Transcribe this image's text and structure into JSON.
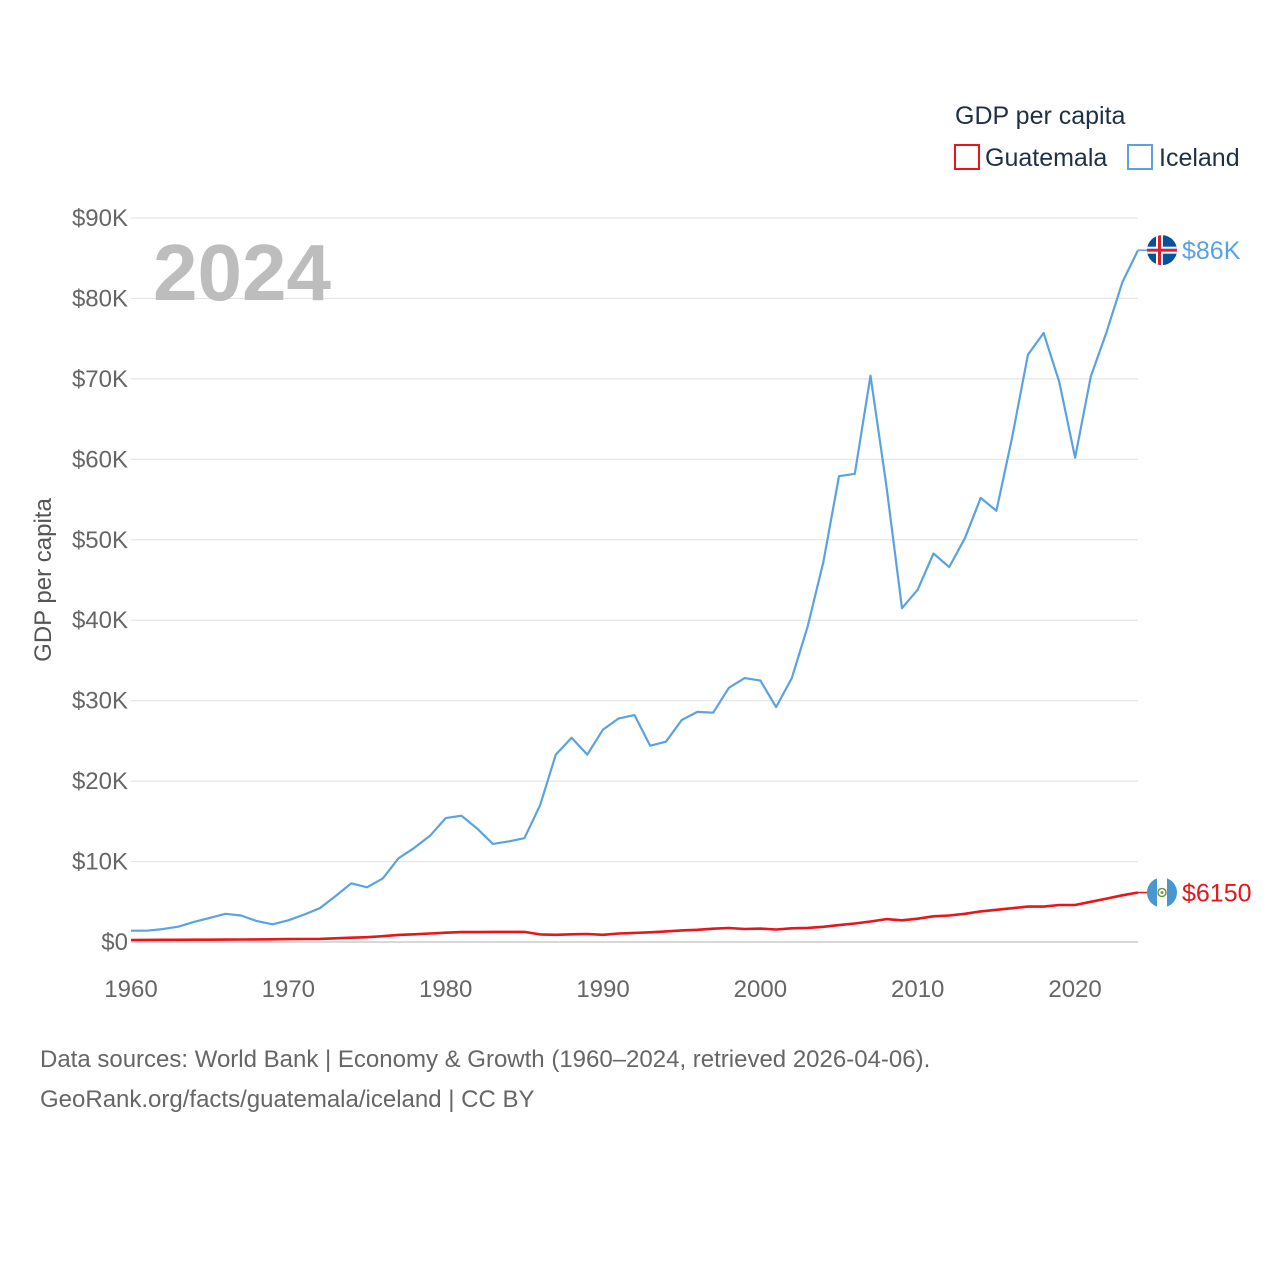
{
  "chart_data": {
    "type": "line",
    "title": "GDP per capita",
    "ylabel": "GDP per capita",
    "xlabel": "",
    "year_label": "2024",
    "xlim": [
      1960,
      2024
    ],
    "ylim": [
      0,
      90000
    ],
    "x_ticks": [
      "1960",
      "1970",
      "1980",
      "1990",
      "2000",
      "2010",
      "2020"
    ],
    "y_ticks": [
      "$0",
      "$10K",
      "$20K",
      "$30K",
      "$40K",
      "$50K",
      "$60K",
      "$70K",
      "$80K",
      "$90K"
    ],
    "legend": {
      "title": "GDP per capita",
      "position": "top-right"
    },
    "series": [
      {
        "name": "Guatemala",
        "color": "#e8151b",
        "end_label": "$6150",
        "flag": "guatemala-flag",
        "x": [
          1960,
          1961,
          1962,
          1963,
          1964,
          1965,
          1966,
          1967,
          1968,
          1969,
          1970,
          1971,
          1972,
          1973,
          1974,
          1975,
          1976,
          1977,
          1978,
          1979,
          1980,
          1981,
          1982,
          1983,
          1984,
          1985,
          1986,
          1987,
          1988,
          1989,
          1990,
          1991,
          1992,
          1993,
          1994,
          1995,
          1996,
          1997,
          1998,
          1999,
          2000,
          2001,
          2002,
          2003,
          2004,
          2005,
          2006,
          2007,
          2008,
          2009,
          2010,
          2011,
          2012,
          2013,
          2014,
          2015,
          2016,
          2017,
          2018,
          2019,
          2020,
          2021,
          2022,
          2023,
          2024
        ],
        "values": [
          250,
          260,
          270,
          270,
          280,
          290,
          300,
          310,
          320,
          340,
          360,
          370,
          390,
          460,
          540,
          600,
          720,
          880,
          960,
          1060,
          1160,
          1230,
          1230,
          1250,
          1260,
          1260,
          950,
          900,
          960,
          990,
          900,
          1060,
          1130,
          1200,
          1320,
          1440,
          1520,
          1650,
          1740,
          1620,
          1660,
          1550,
          1700,
          1750,
          1890,
          2100,
          2300,
          2550,
          2850,
          2700,
          2900,
          3200,
          3300,
          3500,
          3800,
          4000,
          4200,
          4400,
          4400,
          4600,
          4600,
          5000,
          5400,
          5800,
          6150
        ]
      },
      {
        "name": "Iceland",
        "color": "#5aa2e2",
        "end_label": "$86K",
        "flag": "iceland-flag",
        "x": [
          1960,
          1961,
          1962,
          1963,
          1964,
          1965,
          1966,
          1967,
          1968,
          1969,
          1970,
          1971,
          1972,
          1973,
          1974,
          1975,
          1976,
          1977,
          1978,
          1979,
          1980,
          1981,
          1982,
          1983,
          1984,
          1985,
          1986,
          1987,
          1988,
          1989,
          1990,
          1991,
          1992,
          1993,
          1994,
          1995,
          1996,
          1997,
          1998,
          1999,
          2000,
          2001,
          2002,
          2003,
          2004,
          2005,
          2006,
          2007,
          2008,
          2009,
          2010,
          2011,
          2012,
          2013,
          2014,
          2015,
          2016,
          2017,
          2018,
          2019,
          2020,
          2021,
          2022,
          2023,
          2024
        ],
        "values": [
          1400,
          1400,
          1600,
          1900,
          2500,
          3000,
          3500,
          3300,
          2600,
          2200,
          2700,
          3400,
          4200,
          5700,
          7300,
          6800,
          7900,
          10400,
          11700,
          13200,
          15400,
          15700,
          14100,
          12200,
          12500,
          12900,
          17000,
          23300,
          25400,
          23300,
          26400,
          27800,
          28200,
          24400,
          24900,
          27600,
          28600,
          28500,
          31600,
          32800,
          32500,
          29200,
          32800,
          39200,
          47200,
          57900,
          58200,
          70400,
          56800,
          41500,
          43800,
          48300,
          46600,
          50200,
          55200,
          53600,
          62700,
          73000,
          75700,
          69600,
          60200,
          70300,
          75800,
          82000,
          86000
        ]
      }
    ]
  },
  "source": {
    "line1": "Data sources: World Bank | Economy & Growth (1960–2024, retrieved 2026-04-06).",
    "line2": "GeoRank.org/facts/guatemala/iceland | CC BY"
  }
}
